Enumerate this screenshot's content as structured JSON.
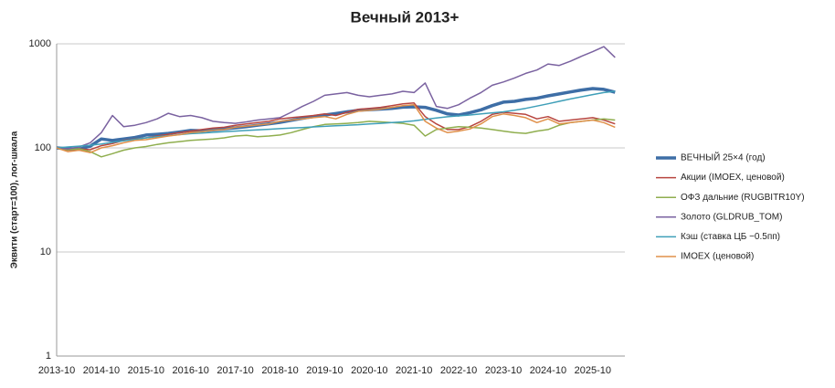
{
  "chart_data": {
    "type": "line",
    "title": "Вечный 2013+",
    "y_label": "Эквити (старт=100), лог-шкала",
    "log_scale": true,
    "grid": true,
    "legend": "right",
    "ylim": [
      1,
      1000
    ],
    "yticks": [
      1,
      10,
      100,
      1000
    ],
    "categories": [
      "2013-10",
      null,
      null,
      null,
      "2014-10",
      null,
      null,
      null,
      "2015-10",
      null,
      null,
      null,
      "2016-10",
      null,
      null,
      null,
      "2017-10",
      null,
      null,
      null,
      "2018-10",
      null,
      null,
      null,
      "2019-10",
      null,
      null,
      null,
      "2020-10",
      null,
      null,
      null,
      "2021-10",
      null,
      null,
      null,
      "2022-10",
      null,
      null,
      null,
      "2023-10",
      null,
      null,
      null,
      "2024-10",
      null,
      null,
      null,
      "2025-10",
      null,
      null
    ],
    "series": [
      {
        "name": "ВЕЧНЫЙ 25×4 (год)",
        "color": "#3e6ea6",
        "width": 3.5,
        "values": [
          100,
          98,
          97,
          104,
          122,
          118,
          122,
          126,
          133,
          135,
          138,
          142,
          147,
          146,
          149,
          152,
          156,
          160,
          165,
          170,
          176,
          184,
          192,
          200,
          207,
          214,
          222,
          230,
          233,
          236,
          240,
          246,
          248,
          245,
          230,
          212,
          207,
          218,
          232,
          255,
          275,
          280,
          292,
          300,
          316,
          330,
          345,
          360,
          372,
          365,
          343
        ]
      },
      {
        "name": "Акции (IMOEX, ценовой)",
        "color": "#b8453f",
        "width": 1.5,
        "values": [
          100,
          95,
          98,
          96,
          105,
          110,
          118,
          122,
          125,
          130,
          135,
          140,
          145,
          150,
          155,
          158,
          165,
          170,
          175,
          180,
          190,
          195,
          200,
          205,
          212,
          205,
          220,
          235,
          240,
          245,
          255,
          265,
          270,
          200,
          170,
          150,
          150,
          160,
          180,
          210,
          220,
          215,
          210,
          190,
          200,
          180,
          185,
          190,
          195,
          185,
          170
        ]
      },
      {
        "name": "ОФЗ дальние (RUGBITR10Y)",
        "color": "#8fae4e",
        "width": 1.5,
        "values": [
          100,
          96,
          98,
          92,
          82,
          88,
          95,
          100,
          103,
          108,
          112,
          115,
          118,
          120,
          122,
          125,
          130,
          132,
          128,
          130,
          133,
          140,
          150,
          160,
          168,
          170,
          172,
          175,
          180,
          178,
          175,
          172,
          165,
          130,
          150,
          155,
          160,
          158,
          155,
          150,
          145,
          140,
          138,
          145,
          150,
          165,
          175,
          180,
          185,
          190,
          185
        ]
      },
      {
        "name": "Золото (GLDRUB_TOM)",
        "color": "#7a62a0",
        "width": 1.5,
        "values": [
          100,
          98,
          102,
          112,
          140,
          205,
          160,
          165,
          175,
          190,
          215,
          200,
          205,
          195,
          180,
          175,
          172,
          178,
          185,
          190,
          195,
          220,
          250,
          280,
          320,
          330,
          340,
          320,
          310,
          320,
          330,
          350,
          340,
          420,
          250,
          240,
          260,
          300,
          340,
          400,
          430,
          470,
          520,
          560,
          640,
          620,
          680,
          760,
          840,
          940,
          740
        ]
      },
      {
        "name": "Кэш (ставка ЦБ −0.5пп)",
        "color": "#3f9fb8",
        "width": 1.5,
        "values": [
          100,
          102,
          104,
          106,
          109,
          113,
          117,
          121,
          125,
          128,
          131,
          134,
          137,
          139,
          141,
          143,
          145,
          147,
          149,
          151,
          153,
          155,
          157,
          159,
          161,
          163,
          165,
          167,
          170,
          172,
          175,
          178,
          182,
          188,
          194,
          199,
          203,
          207,
          212,
          217,
          222,
          230,
          240,
          252,
          265,
          280,
          295,
          310,
          325,
          340,
          350
        ]
      },
      {
        "name": "IMOEX (ценовой)",
        "color": "#e0904a",
        "width": 1.5,
        "values": [
          100,
          92,
          95,
          90,
          100,
          105,
          112,
          118,
          120,
          125,
          130,
          134,
          140,
          143,
          148,
          150,
          158,
          162,
          166,
          170,
          180,
          185,
          190,
          195,
          200,
          190,
          210,
          225,
          230,
          236,
          245,
          255,
          260,
          180,
          155,
          140,
          145,
          152,
          170,
          200,
          212,
          205,
          195,
          175,
          190,
          170,
          175,
          180,
          185,
          175,
          158
        ]
      }
    ]
  }
}
